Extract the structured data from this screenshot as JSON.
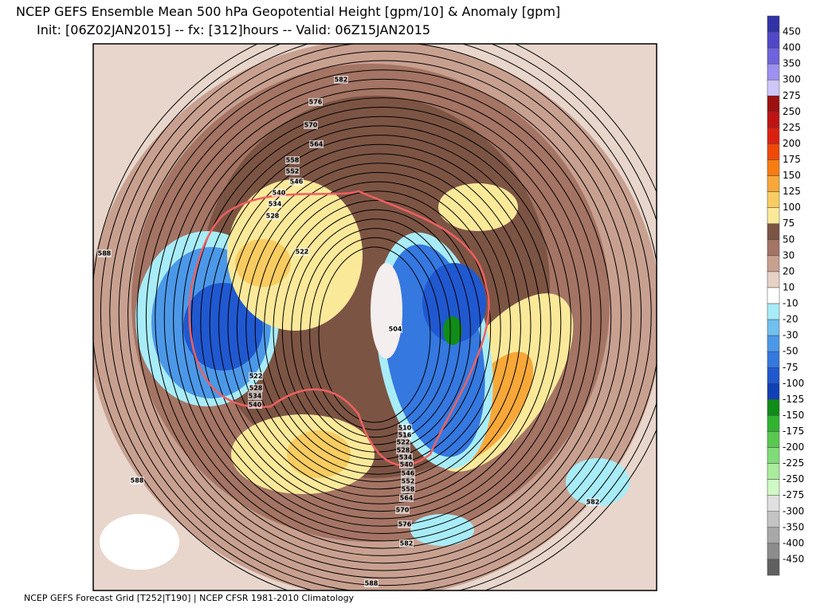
{
  "header": {
    "title": "NCEP GEFS Ensemble Mean 500 hPa Geopotential Height [gpm/10] & Anomaly [gpm]",
    "subtitle": "Init: [06Z02JAN2015] -- fx: [312]hours -- Valid: 06Z15JAN2015"
  },
  "footer": "NCEP GEFS Forecast Grid [T252|T190] | NCEP CFSR 1981-2010 Climatology",
  "map": {
    "contour_labels": [
      582,
      576,
      570,
      564,
      558,
      552,
      546,
      540,
      534,
      528,
      522,
      588,
      504,
      522,
      528,
      534,
      540,
      510,
      516,
      522,
      528,
      534,
      540,
      546,
      552,
      558,
      564,
      570,
      576,
      582,
      588,
      582,
      588
    ]
  },
  "colorbar": {
    "colors": [
      "#3232a8",
      "#5048c8",
      "#6e64dc",
      "#9c90f0",
      "#cdc6f8",
      "#9c1010",
      "#c01414",
      "#dc2010",
      "#f04808",
      "#f87c10",
      "#f8a838",
      "#f8cc60",
      "#fbe99a",
      "#7c5444",
      "#a47464",
      "#c8a090",
      "#e6d2c6",
      "#ffffff",
      "#a8ecf8",
      "#70c0f0",
      "#4c98e8",
      "#3478e0",
      "#2058d0",
      "#1040b8",
      "#108c18",
      "#30b430",
      "#58c850",
      "#80dc78",
      "#a8ec9c",
      "#d0f8c4",
      "#e0e0e0",
      "#c4c4c4",
      "#a8a8a8",
      "#8c8c8c",
      "#606060"
    ],
    "levels": [
      450,
      400,
      350,
      300,
      275,
      250,
      225,
      200,
      175,
      150,
      125,
      100,
      75,
      50,
      30,
      20,
      10,
      -10,
      -20,
      -30,
      -50,
      -75,
      -100,
      -125,
      -150,
      -175,
      -200,
      -225,
      -250,
      -275,
      -300,
      -350,
      -400,
      -450
    ]
  }
}
